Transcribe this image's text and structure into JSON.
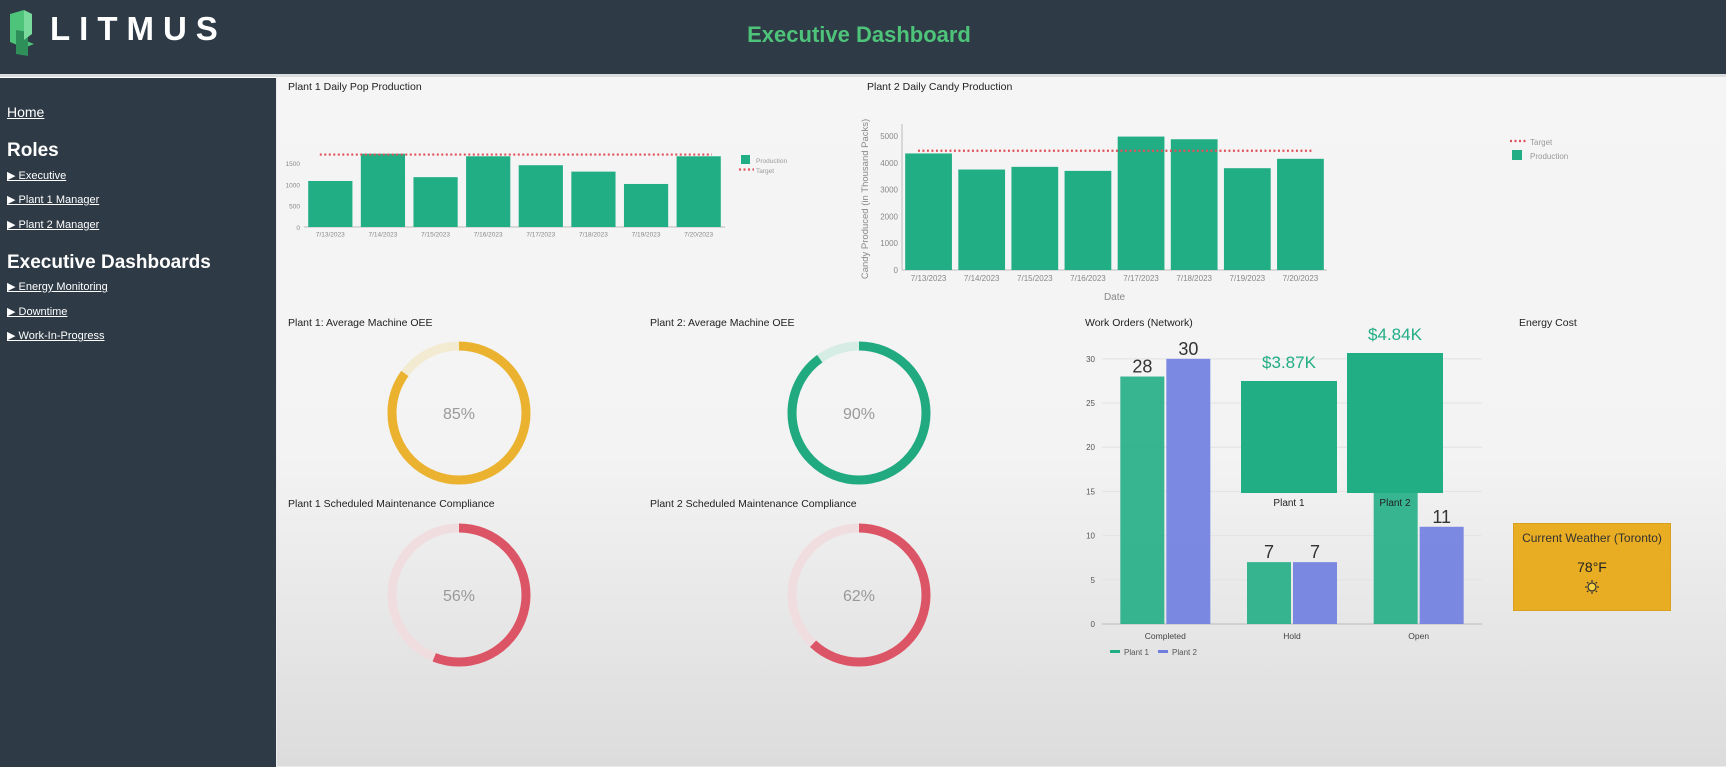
{
  "header": {
    "logo_text": "LITMUS",
    "title": "Executive Dashboard"
  },
  "sidebar": {
    "home": "Home",
    "roles_heading": "Roles",
    "roles": [
      "▶ Executive",
      "▶ Plant 1 Manager",
      "▶ Plant 2 Manager"
    ],
    "dashboards_heading": "Executive Dashboards",
    "dashboards": [
      "▶ Energy Monitoring",
      "▶ Downtime",
      "▶ Work-In-Progress"
    ]
  },
  "panels": {
    "plant1_prod_title": "Plant 1 Daily Pop Production",
    "plant2_prod_title": "Plant 2 Daily Candy Production",
    "plant1_oee_title": "Plant 1: Average Machine OEE",
    "plant2_oee_title": "Plant 2: Average Machine OEE",
    "plant1_maint_title": "Plant 1 Scheduled Maintenance Compliance",
    "plant2_maint_title": "Plant 2 Scheduled Maintenance Compliance",
    "work_orders_title": "Work Orders (Network)",
    "energy_title": "Energy Cost"
  },
  "gauges": {
    "plant1_oee": {
      "value": 85,
      "label": "85%",
      "color": "#eab22f",
      "track": "#f3ead2"
    },
    "plant2_oee": {
      "value": 90,
      "label": "90%",
      "color": "#21a97f",
      "track": "#d5ede4"
    },
    "plant1_maint": {
      "value": 56,
      "label": "56%",
      "color": "#dc5566",
      "track": "#f0dde0"
    },
    "plant2_maint": {
      "value": 62,
      "label": "62%",
      "color": "#dc5566",
      "track": "#f0dde0"
    }
  },
  "energy": {
    "plants": [
      {
        "name": "Plant 1",
        "cost": 3.87,
        "label": "$3.87K"
      },
      {
        "name": "Plant 2",
        "cost": 4.84,
        "label": "$4.84K"
      }
    ]
  },
  "weather": {
    "title": "Current Weather (Toronto)",
    "temp": "78°F",
    "icon": "sun-icon"
  },
  "colors": {
    "accent_green": "#4ec37a",
    "bar_green": "#22ae85",
    "bar_blue": "#6f7de0",
    "target_red": "#e0505a",
    "header_bg": "#2e3a45"
  },
  "chart_data": [
    {
      "id": "plant1_pop",
      "type": "bar",
      "title": "Plant 1 Daily Pop Production",
      "categories": [
        "7/13/2023",
        "7/14/2023",
        "7/15/2023",
        "7/16/2023",
        "7/17/2023",
        "7/18/2023",
        "7/19/2023",
        "7/20/2023"
      ],
      "series": [
        {
          "name": "Production",
          "values": [
            1080,
            1720,
            1170,
            1660,
            1450,
            1300,
            1010,
            1660
          ]
        },
        {
          "name": "Target",
          "values": [
            1700,
            1700,
            1700,
            1700,
            1700,
            1700,
            1700,
            1700
          ]
        }
      ],
      "yticks": [
        0,
        500,
        1000,
        1500
      ],
      "ylim": [
        0,
        2300
      ],
      "legend_position": "right"
    },
    {
      "id": "plant2_candy",
      "type": "bar",
      "title": "Plant 2 Daily Candy Production",
      "categories": [
        "7/13/2023",
        "7/14/2023",
        "7/15/2023",
        "7/16/2023",
        "7/17/2023",
        "7/18/2023",
        "7/19/2023",
        "7/20/2023"
      ],
      "series": [
        {
          "name": "Production",
          "values": [
            4350,
            3750,
            3850,
            3700,
            4980,
            4880,
            3800,
            4150
          ]
        },
        {
          "name": "Target",
          "values": [
            4450,
            4450,
            4450,
            4450,
            4450,
            4450,
            4450,
            4450
          ]
        }
      ],
      "xlabel": "Date",
      "ylabel": "Candy Produced (in Thousand Packs)",
      "yticks": [
        0,
        1000,
        2000,
        3000,
        4000,
        5000
      ],
      "ylim": [
        0,
        5300
      ],
      "legend_position": "top-right",
      "legend_order": [
        "Target",
        "Production"
      ]
    },
    {
      "id": "work_orders",
      "type": "bar",
      "title": "Work Orders (Network)",
      "categories": [
        "Completed",
        "Hold",
        "Open"
      ],
      "series": [
        {
          "name": "Plant 1",
          "values": [
            28,
            7,
            15
          ]
        },
        {
          "name": "Plant 2",
          "values": [
            30,
            7,
            11
          ]
        }
      ],
      "yticks": [
        0,
        5,
        10,
        15,
        20,
        25,
        30
      ],
      "ylim": [
        0,
        31
      ],
      "legend_position": "bottom-left"
    }
  ]
}
